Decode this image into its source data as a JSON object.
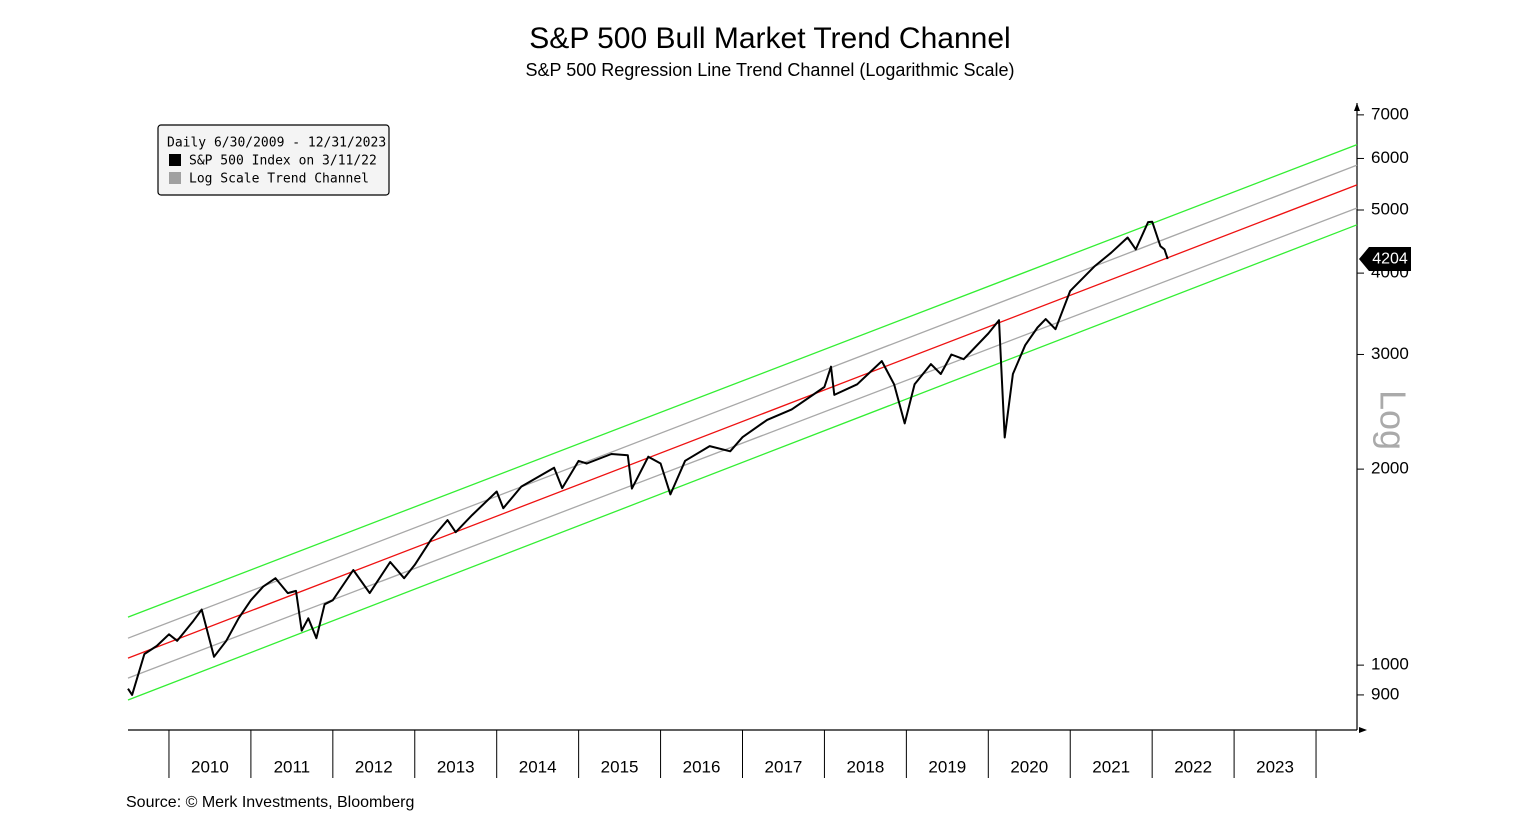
{
  "chart_data": {
    "type": "line",
    "title": "S&P 500 Bull Market Trend Channel",
    "subtitle": "S&P 500 Regression Line Trend Channel (Logarithmic Scale)",
    "y_axis_label": "Log",
    "source": "Source: © Merk Investments, Bloomberg",
    "legend_title": "Daily 6/30/2009 - 12/31/2023",
    "log_scale": true,
    "xlim": [
      2009.5,
      2024.5
    ],
    "ylim": [
      795,
      7300
    ],
    "yticks": [
      900,
      1000,
      2000,
      3000,
      4000,
      5000,
      6000,
      7000
    ],
    "xticks": [
      {
        "value": 2010,
        "label": "2010"
      },
      {
        "value": 2011,
        "label": "2011"
      },
      {
        "value": 2012,
        "label": "2012"
      },
      {
        "value": 2013,
        "label": "2013"
      },
      {
        "value": 2014,
        "label": "2014"
      },
      {
        "value": 2015,
        "label": "2015"
      },
      {
        "value": 2016,
        "label": "2016"
      },
      {
        "value": 2017,
        "label": "2017"
      },
      {
        "value": 2018,
        "label": "2018"
      },
      {
        "value": 2019,
        "label": "2019"
      },
      {
        "value": 2020,
        "label": "2020"
      },
      {
        "value": 2021,
        "label": "2021"
      },
      {
        "value": 2022,
        "label": "2022"
      },
      {
        "value": 2023,
        "label": "2023"
      },
      {
        "value": 2024,
        "label": ""
      }
    ],
    "series": [
      {
        "name": "S&P 500 Index on 3/11/22",
        "color": "#000000",
        "x": [
          2009.5,
          2009.55,
          2009.7,
          2009.85,
          2010.0,
          2010.1,
          2010.3,
          2010.4,
          2010.55,
          2010.7,
          2010.85,
          2011.0,
          2011.15,
          2011.3,
          2011.45,
          2011.55,
          2011.62,
          2011.7,
          2011.8,
          2011.9,
          2012.0,
          2012.25,
          2012.45,
          2012.7,
          2012.87,
          2013.0,
          2013.2,
          2013.4,
          2013.5,
          2013.7,
          2014.0,
          2014.08,
          2014.3,
          2014.7,
          2014.8,
          2015.0,
          2015.1,
          2015.4,
          2015.6,
          2015.65,
          2015.85,
          2016.0,
          2016.12,
          2016.3,
          2016.6,
          2016.85,
          2017.0,
          2017.3,
          2017.6,
          2018.0,
          2018.08,
          2018.12,
          2018.4,
          2018.7,
          2018.85,
          2018.98,
          2019.1,
          2019.3,
          2019.42,
          2019.55,
          2019.7,
          2020.0,
          2020.13,
          2020.2,
          2020.3,
          2020.45,
          2020.6,
          2020.7,
          2020.82,
          2021.0,
          2021.3,
          2021.5,
          2021.7,
          2021.8,
          2021.95,
          2022.0,
          2022.1,
          2022.15,
          2022.19
        ],
        "values": [
          920,
          900,
          1040,
          1070,
          1115,
          1090,
          1170,
          1217,
          1030,
          1090,
          1180,
          1258,
          1320,
          1360,
          1290,
          1300,
          1130,
          1180,
          1100,
          1240,
          1258,
          1400,
          1290,
          1440,
          1360,
          1426,
          1560,
          1670,
          1600,
          1700,
          1848,
          1742,
          1880,
          2010,
          1870,
          2059,
          2040,
          2110,
          2100,
          1867,
          2090,
          2040,
          1829,
          2060,
          2170,
          2130,
          2239,
          2380,
          2470,
          2674,
          2873,
          2600,
          2700,
          2930,
          2700,
          2351,
          2700,
          2900,
          2800,
          3000,
          2950,
          3231,
          3386,
          2237,
          2800,
          3100,
          3300,
          3400,
          3280,
          3756,
          4100,
          4300,
          4537,
          4350,
          4790,
          4797,
          4400,
          4350,
          4204
        ]
      }
    ],
    "trend_channel": {
      "name": "Log Scale Trend Channel",
      "color": "#a0a0a0",
      "x": [
        2009.5,
        2024.5
      ],
      "lines": [
        {
          "color": "#33ee33",
          "values": [
            1185,
            6300
          ]
        },
        {
          "color": "#a8a8a8",
          "values": [
            1100,
            5860
          ]
        },
        {
          "color": "#ee1111",
          "values": [
            1025,
            5465
          ]
        },
        {
          "color": "#a8a8a8",
          "values": [
            955,
            5035
          ]
        },
        {
          "color": "#33ee33",
          "values": [
            884,
            4745
          ]
        }
      ]
    }
  }
}
